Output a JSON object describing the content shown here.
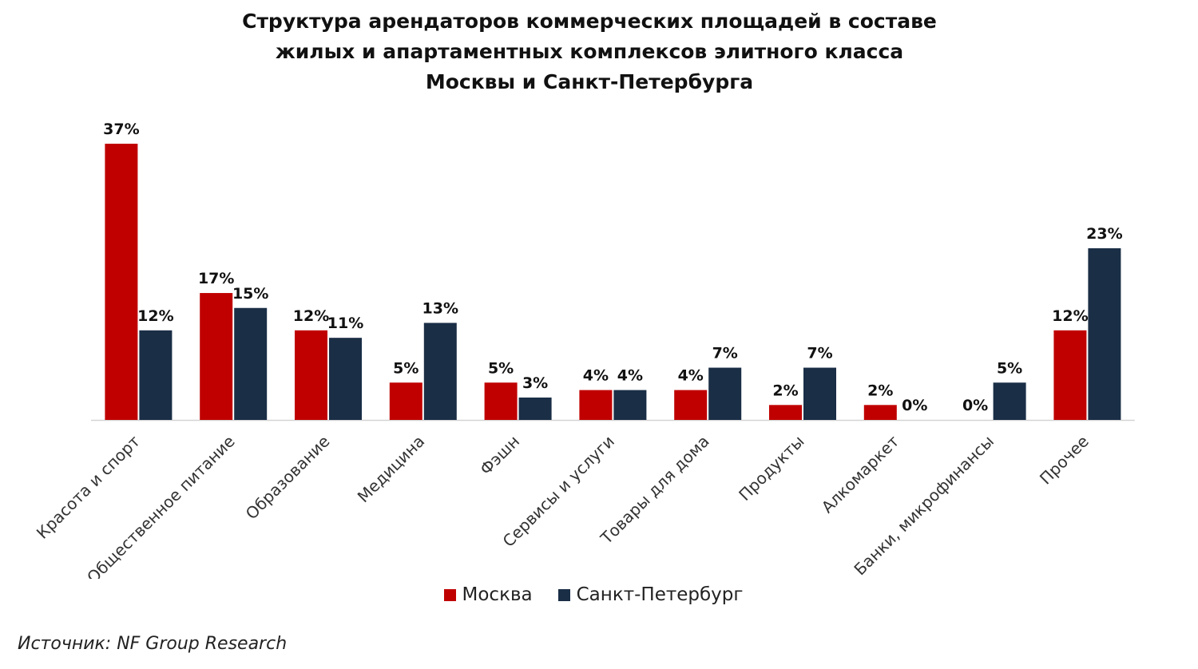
{
  "title_lines": [
    "Структура арендаторов коммерческих площадей в составе",
    "жилых и апартаментных комплексов элитного класса",
    "Москвы и Санкт-Петербурга"
  ],
  "source": "Источник: NF Group Research",
  "chart_data": {
    "type": "bar",
    "title": "Структура арендаторов коммерческих площадей в составе жилых и апартаментных комплексов элитного класса Москвы и Санкт-Петербурга",
    "categories": [
      "Красота и спорт",
      "Общественное питание",
      "Образование",
      "Медицина",
      "Фэшн",
      "Сервисы и услуги",
      "Товары для дома",
      "Продукты",
      "Алкомаркет",
      "Банки, микрофинансы",
      "Прочее"
    ],
    "series": [
      {
        "name": "Москва",
        "color": "#c00000",
        "values": [
          37,
          17,
          12,
          5,
          5,
          4,
          4,
          2,
          2,
          0,
          12
        ],
        "labels": [
          "37%",
          "17%",
          "12%",
          "5%",
          "5%",
          "4%",
          "4%",
          "2%",
          "2%",
          "0%",
          "12%"
        ]
      },
      {
        "name": "Санкт-Петербург",
        "color": "#1a2e46",
        "values": [
          12,
          15,
          11,
          13,
          3,
          4,
          7,
          7,
          0,
          5,
          23
        ],
        "labels": [
          "12%",
          "15%",
          "11%",
          "13%",
          "3%",
          "4%",
          "7%",
          "7%",
          "0%",
          "5%",
          "23%"
        ]
      }
    ],
    "unit": "%",
    "ylim": [
      0,
      37
    ],
    "grid": false,
    "y_axis_visible": false,
    "legend_position": "bottom"
  }
}
